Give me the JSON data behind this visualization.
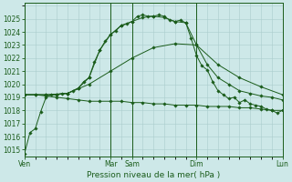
{
  "xlabel": "Pression niveau de la mer( hPa )",
  "background_color": "#cde8e8",
  "grid_color": "#aacccc",
  "line_color": "#1a5c1a",
  "ylim": [
    1014.5,
    1026.2
  ],
  "xlim": [
    0,
    144
  ],
  "series1": {
    "x": [
      0,
      3,
      6,
      9,
      12,
      15,
      18,
      21,
      24,
      27,
      30,
      33,
      36,
      39,
      42,
      45,
      48,
      51,
      54,
      57,
      60,
      63,
      66,
      69,
      72,
      75,
      78,
      81,
      84,
      87,
      90,
      93,
      96,
      99,
      102,
      105,
      108,
      111,
      114,
      117,
      120,
      123,
      126,
      129,
      132,
      135,
      138,
      141,
      144
    ],
    "y": [
      1014.7,
      1016.3,
      1016.6,
      1017.9,
      1019.0,
      1019.2,
      1019.2,
      1019.3,
      1019.3,
      1019.5,
      1019.7,
      1020.2,
      1020.5,
      1021.7,
      1022.6,
      1023.3,
      1023.8,
      1024.1,
      1024.5,
      1024.6,
      1024.8,
      1025.2,
      1025.3,
      1025.2,
      1025.2,
      1025.3,
      1025.2,
      1024.9,
      1024.8,
      1024.9,
      1024.7,
      1023.5,
      1022.2,
      1021.4,
      1021.1,
      1020.2,
      1019.5,
      1019.2,
      1018.9,
      1019.0,
      1018.6,
      1018.8,
      1018.5,
      1018.4,
      1018.3,
      1018.1,
      1018.0,
      1017.8,
      1018.0
    ]
  },
  "series2": {
    "x": [
      0,
      6,
      12,
      18,
      24,
      30,
      36,
      42,
      48,
      54,
      60,
      66,
      72,
      78,
      84,
      90,
      96,
      102,
      108,
      114,
      120,
      126,
      132,
      138,
      144
    ],
    "y": [
      1019.2,
      1019.2,
      1019.2,
      1019.2,
      1019.3,
      1019.7,
      1020.5,
      1022.6,
      1023.8,
      1024.5,
      1024.8,
      1025.1,
      1025.2,
      1025.1,
      1024.8,
      1024.7,
      1023.0,
      1021.5,
      1020.5,
      1020.0,
      1019.5,
      1019.3,
      1019.1,
      1019.0,
      1018.8
    ]
  },
  "series3": {
    "x": [
      0,
      12,
      24,
      36,
      48,
      60,
      72,
      84,
      96,
      108,
      120,
      132,
      144
    ],
    "y": [
      1019.2,
      1019.2,
      1019.3,
      1020.0,
      1021.0,
      1022.0,
      1022.8,
      1023.1,
      1023.0,
      1021.5,
      1020.5,
      1019.8,
      1019.2
    ]
  },
  "series4": {
    "x": [
      0,
      6,
      12,
      18,
      24,
      30,
      36,
      42,
      48,
      54,
      60,
      66,
      72,
      78,
      84,
      90,
      96,
      102,
      108,
      114,
      120,
      126,
      132,
      138,
      144
    ],
    "y": [
      1019.2,
      1019.2,
      1019.1,
      1019.0,
      1018.9,
      1018.8,
      1018.7,
      1018.7,
      1018.7,
      1018.7,
      1018.6,
      1018.6,
      1018.5,
      1018.5,
      1018.4,
      1018.4,
      1018.4,
      1018.3,
      1018.3,
      1018.3,
      1018.2,
      1018.2,
      1018.1,
      1018.0,
      1018.0
    ]
  },
  "ytick_values": [
    1015,
    1016,
    1017,
    1018,
    1019,
    1020,
    1021,
    1022,
    1023,
    1024,
    1025
  ],
  "major_xtick_positions": [
    0,
    48,
    60,
    96,
    144
  ],
  "major_xtick_labels": [
    "Ven",
    "Mar",
    "Sam",
    "Dim",
    "Lun"
  ],
  "vline_positions": [
    0,
    48,
    60,
    96,
    144
  ]
}
